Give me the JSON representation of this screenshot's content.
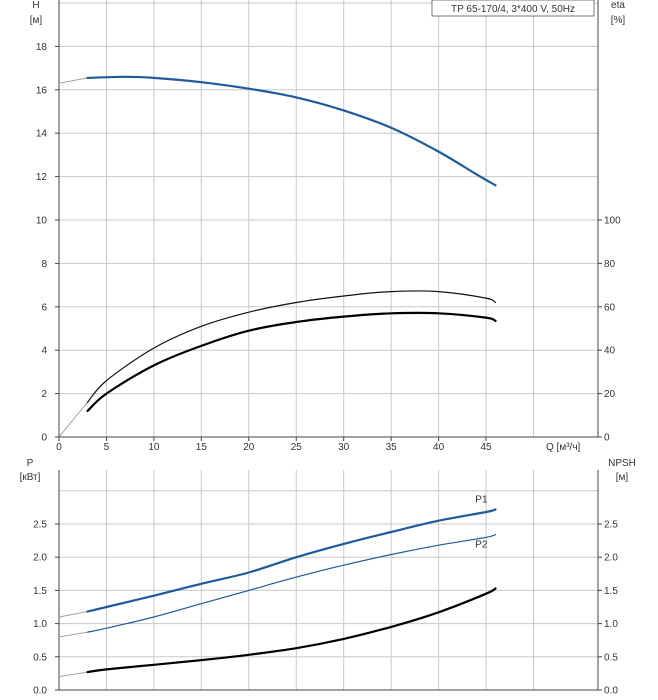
{
  "chart_data": [
    {
      "type": "line",
      "panel": "top",
      "model_label": "TP 65-170/4, 3*400 V, 50Hz",
      "left_axis": {
        "title": "H",
        "unit": "[м]",
        "ticks": [
          "0",
          "2",
          "4",
          "6",
          "8",
          "10",
          "12",
          "14",
          "16",
          "18"
        ],
        "range": [
          0,
          20
        ]
      },
      "right_axis": {
        "title": "eta",
        "unit": "[%]",
        "ticks": [
          "0",
          "20",
          "40",
          "60",
          "80",
          "100"
        ],
        "range": [
          0,
          200
        ]
      },
      "x_axis": {
        "unit": "Q [м³/ч]",
        "ticks": [
          "0",
          "5",
          "10",
          "15",
          "20",
          "25",
          "30",
          "35",
          "40",
          "45"
        ],
        "range": [
          0,
          50
        ]
      },
      "grid": true,
      "series": [
        {
          "name": "",
          "role": "H",
          "color": "#1e5a9c",
          "x": [
            0,
            3,
            7,
            10,
            15,
            20,
            25,
            30,
            35,
            40,
            44,
            46
          ],
          "y": [
            16.3,
            16.55,
            16.6,
            16.55,
            16.35,
            16.05,
            15.65,
            15.05,
            14.25,
            13.15,
            12.1,
            11.6
          ]
        },
        {
          "name": "",
          "role": "eta",
          "color": "#111111",
          "x": [
            0,
            3,
            5,
            10,
            15,
            20,
            25,
            30,
            35,
            40,
            45,
            46
          ],
          "y": [
            0,
            16,
            26,
            41,
            51,
            57.5,
            62,
            65,
            67,
            67,
            64,
            62
          ]
        },
        {
          "name": "",
          "role": "eta-total",
          "color": "#000000",
          "x": [
            3,
            5,
            10,
            15,
            20,
            25,
            30,
            35,
            40,
            45,
            46
          ],
          "y": [
            12,
            20,
            33,
            42,
            49,
            53,
            55.5,
            57,
            57,
            55,
            53.5
          ]
        }
      ]
    },
    {
      "type": "line",
      "panel": "bottom",
      "left_axis": {
        "title": "P",
        "unit": "[кВт]",
        "ticks": [
          "0.0",
          "0.5",
          "1.0",
          "1.5",
          "2.0",
          "2.5"
        ],
        "range": [
          0,
          3.0
        ]
      },
      "right_axis": {
        "title": "NPSH",
        "unit": "[м]",
        "ticks": [
          "0.0",
          "0.5",
          "1.0",
          "1.5",
          "2.0",
          "2.5"
        ],
        "range": [
          0,
          3.0
        ]
      },
      "x_axis": {
        "range": [
          0,
          50
        ]
      },
      "grid": true,
      "series": [
        {
          "name": "P1",
          "color": "#1e5a9c",
          "x": [
            0,
            3,
            5,
            10,
            15,
            20,
            25,
            30,
            35,
            40,
            45,
            46
          ],
          "y": [
            1.1,
            1.18,
            1.25,
            1.42,
            1.6,
            1.77,
            2.0,
            2.2,
            2.38,
            2.55,
            2.68,
            2.72
          ]
        },
        {
          "name": "P2",
          "color": "#1e5a9c",
          "x": [
            0,
            3,
            5,
            10,
            15,
            20,
            25,
            30,
            35,
            40,
            45,
            46
          ],
          "y": [
            0.8,
            0.87,
            0.93,
            1.1,
            1.3,
            1.5,
            1.7,
            1.88,
            2.04,
            2.18,
            2.3,
            2.34
          ]
        },
        {
          "name": "",
          "role": "NPSH",
          "color": "#000000",
          "x": [
            0,
            3,
            5,
            10,
            15,
            20,
            25,
            30,
            35,
            40,
            45,
            46
          ],
          "y": [
            0.2,
            0.27,
            0.31,
            0.38,
            0.45,
            0.53,
            0.63,
            0.77,
            0.95,
            1.17,
            1.45,
            1.53
          ]
        }
      ]
    }
  ]
}
